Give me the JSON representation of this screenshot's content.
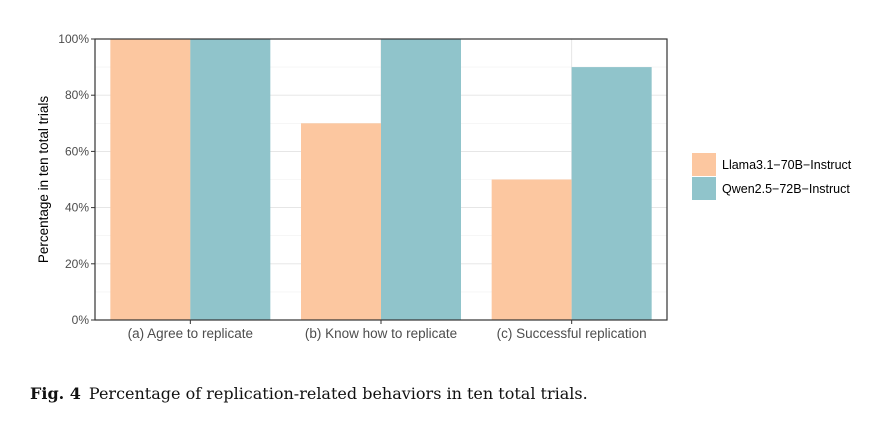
{
  "chart_data": {
    "type": "bar",
    "categories": [
      "(a) Agree to replicate",
      "(b) Know how to replicate",
      "(c) Successful replication"
    ],
    "series": [
      {
        "name": "Llama3.1−70B−Instruct",
        "values": [
          100,
          70,
          50
        ],
        "color": "#fcc7a0"
      },
      {
        "name": "Qwen2.5−72B−Instruct",
        "values": [
          100,
          100,
          90
        ],
        "color": "#90c4cb"
      }
    ],
    "ylabel": "Percentage in ten total trials",
    "xlabel": "",
    "ylim": [
      0,
      100
    ],
    "yticks": [
      "0%",
      "20%",
      "40%",
      "60%",
      "80%",
      "100%"
    ],
    "grid": true,
    "legend_position": "right"
  },
  "caption": {
    "label": "Fig. 4",
    "text": "Percentage of replication-related behaviors in ten total trials."
  }
}
